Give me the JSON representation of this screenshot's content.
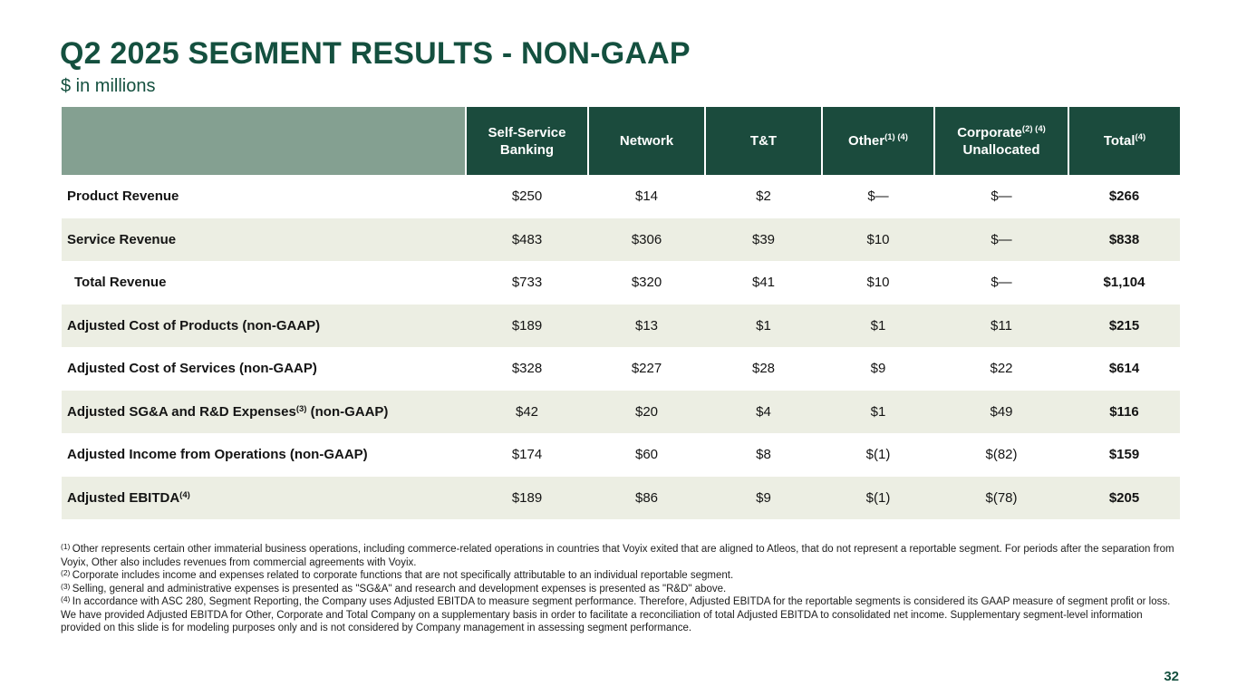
{
  "slide": {
    "title": "Q2 2025 SEGMENT RESULTS - NON-GAAP",
    "subtitle": "$ in millions",
    "page_number": "32"
  },
  "colors": {
    "title_green": "#14503F",
    "header_green": "#1B4B3D",
    "sage": "#84A091",
    "row_shade": "#ECEEE3"
  },
  "table": {
    "columns": [
      {
        "id": "self-service-banking",
        "line1": "Self-Service",
        "sup": "",
        "line2": "Banking"
      },
      {
        "id": "network",
        "line1": "Network",
        "sup": "",
        "line2": ""
      },
      {
        "id": "t-and-t",
        "line1": "T&T",
        "sup": "",
        "line2": ""
      },
      {
        "id": "other",
        "line1": "Other",
        "sup": "(1) (4)",
        "line2": ""
      },
      {
        "id": "corporate-unallocated",
        "line1": "Corporate",
        "sup": "(2) (4)",
        "line2": "Unallocated"
      },
      {
        "id": "total",
        "line1": "Total",
        "sup": "(4)",
        "line2": ""
      }
    ],
    "rows": [
      {
        "label": "Product Revenue",
        "sup": "",
        "suffix": "",
        "indent": false,
        "values": [
          "$250",
          "$14",
          "$2",
          "$—",
          "$—",
          "$266"
        ]
      },
      {
        "label": "Service Revenue",
        "sup": "",
        "suffix": "",
        "indent": false,
        "values": [
          "$483",
          "$306",
          "$39",
          "$10",
          "$—",
          "$838"
        ]
      },
      {
        "label": "Total Revenue",
        "sup": "",
        "suffix": "",
        "indent": true,
        "values": [
          "$733",
          "$320",
          "$41",
          "$10",
          "$—",
          "$1,104"
        ]
      },
      {
        "label": "Adjusted Cost of Products (non-GAAP)",
        "sup": "",
        "suffix": "",
        "indent": false,
        "values": [
          "$189",
          "$13",
          "$1",
          "$1",
          "$11",
          "$215"
        ]
      },
      {
        "label": "Adjusted Cost of Services (non-GAAP)",
        "sup": "",
        "suffix": "",
        "indent": false,
        "values": [
          "$328",
          "$227",
          "$28",
          "$9",
          "$22",
          "$614"
        ]
      },
      {
        "label": "Adjusted SG&A and R&D Expenses",
        "sup": "(3)",
        "suffix": " (non-GAAP)",
        "indent": false,
        "values": [
          "$42",
          "$20",
          "$4",
          "$1",
          "$49",
          "$116"
        ]
      },
      {
        "label": "Adjusted Income from Operations (non-GAAP)",
        "sup": "",
        "suffix": "",
        "indent": false,
        "values": [
          "$174",
          "$60",
          "$8",
          "$(1)",
          "$(82)",
          "$159"
        ]
      },
      {
        "label": "Adjusted EBITDA",
        "sup": "(4)",
        "suffix": "",
        "indent": false,
        "values": [
          "$189",
          "$86",
          "$9",
          "$(1)",
          "$(78)",
          "$205"
        ]
      }
    ]
  },
  "footnotes": [
    {
      "marker": "(1)",
      "text": "Other represents certain other immaterial business operations, including commerce-related operations in countries that Voyix exited that are aligned to Atleos, that do not represent a reportable segment. For periods after the separation from Voyix, Other also includes revenues from commercial agreements with Voyix."
    },
    {
      "marker": "(2)",
      "text": "Corporate includes income and expenses related to corporate functions that are not specifically attributable to an individual reportable segment."
    },
    {
      "marker": "(3)",
      "text": "Selling, general and administrative expenses is presented as \"SG&A\" and research and development expenses is presented as \"R&D\" above."
    },
    {
      "marker": "(4)",
      "text": "In accordance with ASC 280, Segment Reporting, the Company uses Adjusted EBITDA to measure segment performance. Therefore, Adjusted EBITDA for the reportable segments is considered its GAAP measure of segment profit or loss. We have provided Adjusted EBITDA for Other, Corporate and Total Company on a supplementary basis in order to facilitate a reconciliation of total Adjusted EBITDA to consolidated net income. Supplementary segment-level information provided on this slide is for modeling purposes only and is not considered by Company management in assessing segment performance."
    }
  ]
}
